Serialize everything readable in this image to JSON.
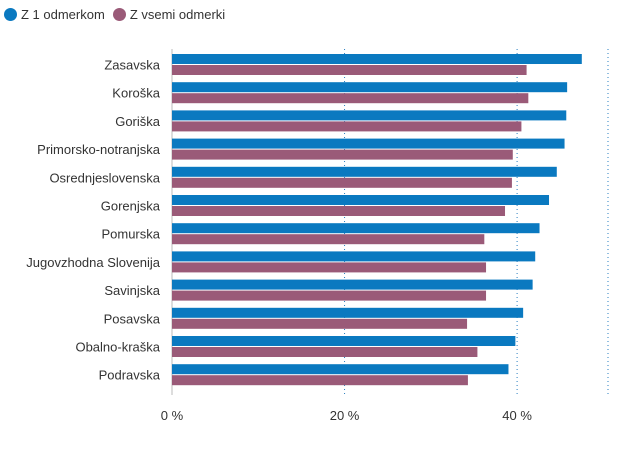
{
  "chart_data": {
    "type": "bar",
    "orientation": "horizontal",
    "categories": [
      "Zasavska",
      "Koroška",
      "Goriška",
      "Primorsko-notranjska",
      "Osrednjeslovenska",
      "Gorenjska",
      "Pomurska",
      "Jugovzhodna Slovenija",
      "Savinjska",
      "Posavska",
      "Obalno-kraška",
      "Podravska"
    ],
    "series": [
      {
        "name": "Z 1 odmerkom",
        "color": "#0a79c0",
        "values": [
          47.5,
          45.8,
          45.7,
          45.5,
          44.6,
          43.7,
          42.6,
          42.1,
          41.8,
          40.7,
          39.8,
          39.0
        ]
      },
      {
        "name": "Z vsemi odmerki",
        "color": "#9a5a78",
        "values": [
          41.1,
          41.3,
          40.5,
          39.5,
          39.4,
          38.6,
          36.2,
          36.4,
          36.4,
          34.2,
          35.4,
          34.3
        ]
      }
    ],
    "x_ticks": [
      {
        "value": 0,
        "label": "0 %"
      },
      {
        "value": 20,
        "label": "20 %"
      },
      {
        "value": 40,
        "label": "40 %"
      }
    ],
    "xlim": [
      0,
      51
    ],
    "grid": true,
    "legend_position": "top-left"
  }
}
